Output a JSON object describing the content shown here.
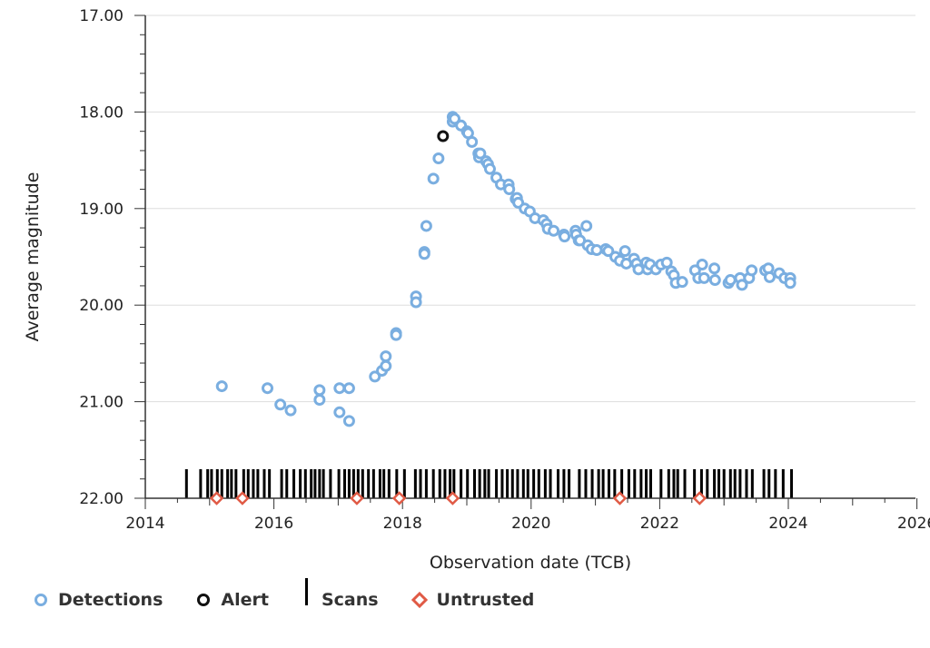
{
  "chart_data": {
    "type": "scatter",
    "xlabel": "Observation date (TCB)",
    "ylabel": "Average magnitude",
    "xlim": [
      2014,
      2026.5
    ],
    "ylim": [
      22.0,
      17.0
    ],
    "y_inverted": true,
    "grid": "horizontal",
    "x_ticks": [
      "2014",
      "2016",
      "2018",
      "2020",
      "2022",
      "2024",
      "2026"
    ],
    "y_ticks": [
      "17.00",
      "18.00",
      "19.00",
      "20.00",
      "21.00",
      "22.00"
    ],
    "legend_position": "bottom-left",
    "colors": {
      "detections": "#7aaee0",
      "alert": "#111111",
      "scans": "#000000",
      "untrusted": "#e05a45",
      "grid": "#dddddd"
    },
    "series": [
      {
        "name": "Detections",
        "points": [
          [
            2015.19,
            20.84
          ],
          [
            2015.9,
            20.86
          ],
          [
            2016.1,
            21.03
          ],
          [
            2016.26,
            21.09
          ],
          [
            2016.71,
            20.88
          ],
          [
            2016.71,
            20.98
          ],
          [
            2017.02,
            20.86
          ],
          [
            2017.02,
            21.11
          ],
          [
            2017.17,
            20.86
          ],
          [
            2017.17,
            21.2
          ],
          [
            2017.57,
            20.74
          ],
          [
            2017.68,
            20.68
          ],
          [
            2017.74,
            20.53
          ],
          [
            2017.74,
            20.63
          ],
          [
            2017.9,
            20.29
          ],
          [
            2017.9,
            20.31
          ],
          [
            2018.21,
            19.91
          ],
          [
            2018.21,
            19.97
          ],
          [
            2018.34,
            19.45
          ],
          [
            2018.34,
            19.47
          ],
          [
            2018.37,
            19.18
          ],
          [
            2018.48,
            18.69
          ],
          [
            2018.56,
            18.48
          ],
          [
            2018.78,
            18.05
          ],
          [
            2018.78,
            18.1
          ],
          [
            2018.81,
            18.07
          ],
          [
            2018.91,
            18.14
          ],
          [
            2019.0,
            18.2
          ],
          [
            2019.02,
            18.22
          ],
          [
            2019.08,
            18.31
          ],
          [
            2019.18,
            18.43
          ],
          [
            2019.19,
            18.47
          ],
          [
            2019.21,
            18.43
          ],
          [
            2019.3,
            18.51
          ],
          [
            2019.33,
            18.54
          ],
          [
            2019.36,
            18.59
          ],
          [
            2019.46,
            18.68
          ],
          [
            2019.53,
            18.75
          ],
          [
            2019.65,
            18.75
          ],
          [
            2019.66,
            18.8
          ],
          [
            2019.76,
            18.9
          ],
          [
            2019.78,
            18.89
          ],
          [
            2019.8,
            18.94
          ],
          [
            2019.9,
            19.0
          ],
          [
            2019.98,
            19.03
          ],
          [
            2020.06,
            19.1
          ],
          [
            2020.19,
            19.12
          ],
          [
            2020.24,
            19.16
          ],
          [
            2020.26,
            19.21
          ],
          [
            2020.35,
            19.23
          ],
          [
            2020.51,
            19.27
          ],
          [
            2020.52,
            19.29
          ],
          [
            2020.69,
            19.23
          ],
          [
            2020.7,
            19.27
          ],
          [
            2020.74,
            19.33
          ],
          [
            2020.76,
            19.33
          ],
          [
            2020.86,
            19.18
          ],
          [
            2020.88,
            19.38
          ],
          [
            2020.94,
            19.42
          ],
          [
            2021.02,
            19.43
          ],
          [
            2021.16,
            19.42
          ],
          [
            2021.2,
            19.44
          ],
          [
            2021.31,
            19.5
          ],
          [
            2021.38,
            19.54
          ],
          [
            2021.46,
            19.44
          ],
          [
            2021.48,
            19.57
          ],
          [
            2021.6,
            19.52
          ],
          [
            2021.64,
            19.57
          ],
          [
            2021.67,
            19.63
          ],
          [
            2021.79,
            19.56
          ],
          [
            2021.81,
            19.63
          ],
          [
            2021.85,
            19.58
          ],
          [
            2021.94,
            19.63
          ],
          [
            2022.02,
            19.58
          ],
          [
            2022.11,
            19.56
          ],
          [
            2022.18,
            19.65
          ],
          [
            2022.22,
            19.69
          ],
          [
            2022.25,
            19.77
          ],
          [
            2022.35,
            19.76
          ],
          [
            2022.55,
            19.64
          ],
          [
            2022.6,
            19.72
          ],
          [
            2022.66,
            19.58
          ],
          [
            2022.69,
            19.72
          ],
          [
            2022.85,
            19.62
          ],
          [
            2022.86,
            19.74
          ],
          [
            2023.07,
            19.77
          ],
          [
            2023.1,
            19.74
          ],
          [
            2023.25,
            19.72
          ],
          [
            2023.28,
            19.79
          ],
          [
            2023.39,
            19.72
          ],
          [
            2023.43,
            19.64
          ],
          [
            2023.64,
            19.64
          ],
          [
            2023.69,
            19.62
          ],
          [
            2023.71,
            19.71
          ],
          [
            2023.86,
            19.67
          ],
          [
            2023.94,
            19.72
          ],
          [
            2024.03,
            19.72
          ],
          [
            2024.03,
            19.77
          ]
        ]
      },
      {
        "name": "Alert",
        "points": [
          [
            2018.63,
            18.25
          ]
        ]
      },
      {
        "name": "Untrusted",
        "points": [
          [
            2015.11,
            22.0
          ],
          [
            2015.51,
            22.0
          ],
          [
            2017.29,
            22.0
          ],
          [
            2017.95,
            22.0
          ],
          [
            2018.78,
            22.0
          ],
          [
            2021.38,
            22.0
          ],
          [
            2022.62,
            22.0
          ]
        ]
      },
      {
        "name": "Scans",
        "x": [
          2014.64,
          2014.86,
          2014.97,
          2015.03,
          2015.12,
          2015.19,
          2015.28,
          2015.34,
          2015.41,
          2015.53,
          2015.6,
          2015.68,
          2015.75,
          2015.85,
          2015.93,
          2016.12,
          2016.2,
          2016.31,
          2016.41,
          2016.49,
          2016.58,
          2016.64,
          2016.71,
          2016.77,
          2016.88,
          2017.01,
          2017.1,
          2017.17,
          2017.24,
          2017.31,
          2017.38,
          2017.47,
          2017.55,
          2017.65,
          2017.71,
          2017.79,
          2017.91,
          2018.03,
          2018.2,
          2018.28,
          2018.37,
          2018.48,
          2018.58,
          2018.66,
          2018.74,
          2018.8,
          2018.91,
          2019.01,
          2019.12,
          2019.2,
          2019.28,
          2019.34,
          2019.46,
          2019.55,
          2019.63,
          2019.71,
          2019.79,
          2019.88,
          2019.95,
          2020.04,
          2020.12,
          2020.22,
          2020.3,
          2020.42,
          2020.51,
          2020.59,
          2020.75,
          2020.85,
          2020.95,
          2021.05,
          2021.12,
          2021.21,
          2021.3,
          2021.41,
          2021.52,
          2021.61,
          2021.71,
          2021.79,
          2021.86,
          2022.02,
          2022.14,
          2022.22,
          2022.28,
          2022.39,
          2022.54,
          2022.65,
          2022.74,
          2022.85,
          2022.92,
          2023.0,
          2023.1,
          2023.17,
          2023.25,
          2023.35,
          2023.44,
          2023.62,
          2023.7,
          2023.8,
          2023.92,
          2024.05
        ]
      }
    ]
  },
  "legend": {
    "detections": "Detections",
    "alert": "Alert",
    "scans": "Scans",
    "untrusted": "Untrusted"
  }
}
